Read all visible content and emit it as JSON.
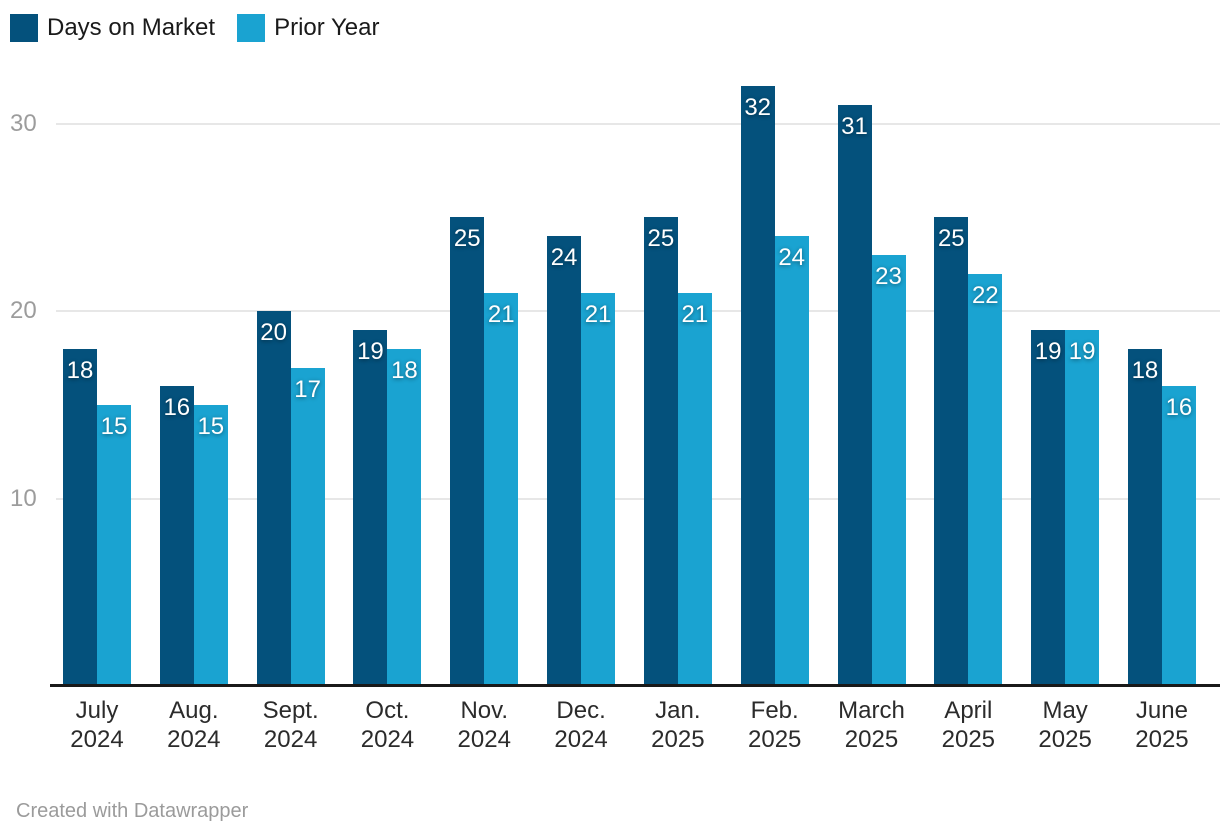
{
  "legend": {
    "items": [
      {
        "label": "Days on Market",
        "color": "#04517c"
      },
      {
        "label": "Prior Year",
        "color": "#1aa3d1"
      }
    ]
  },
  "chart_data": {
    "type": "bar",
    "title": "",
    "categories": [
      {
        "line1": "July",
        "line2": "2024"
      },
      {
        "line1": "Aug.",
        "line2": "2024"
      },
      {
        "line1": "Sept.",
        "line2": "2024"
      },
      {
        "line1": "Oct.",
        "line2": "2024"
      },
      {
        "line1": "Nov.",
        "line2": "2024"
      },
      {
        "line1": "Dec.",
        "line2": "2024"
      },
      {
        "line1": "Jan.",
        "line2": "2025"
      },
      {
        "line1": "Feb.",
        "line2": "2025"
      },
      {
        "line1": "March",
        "line2": "2025"
      },
      {
        "line1": "April",
        "line2": "2025"
      },
      {
        "line1": "May",
        "line2": "2025"
      },
      {
        "line1": "June",
        "line2": "2025"
      }
    ],
    "series": [
      {
        "name": "Days on Market",
        "color": "#04517c",
        "values": [
          18,
          16,
          20,
          19,
          25,
          24,
          25,
          32,
          31,
          25,
          19,
          18
        ]
      },
      {
        "name": "Prior Year",
        "color": "#1aa3d1",
        "values": [
          15,
          15,
          17,
          18,
          21,
          21,
          21,
          24,
          23,
          22,
          19,
          16
        ]
      }
    ],
    "y_ticks": [
      10,
      20,
      30
    ],
    "ylim": [
      0,
      32
    ],
    "grid": "horizontal",
    "legend_position": "top-left",
    "value_labels": "inside-top"
  },
  "footer": {
    "attribution": "Created with Datawrapper"
  }
}
